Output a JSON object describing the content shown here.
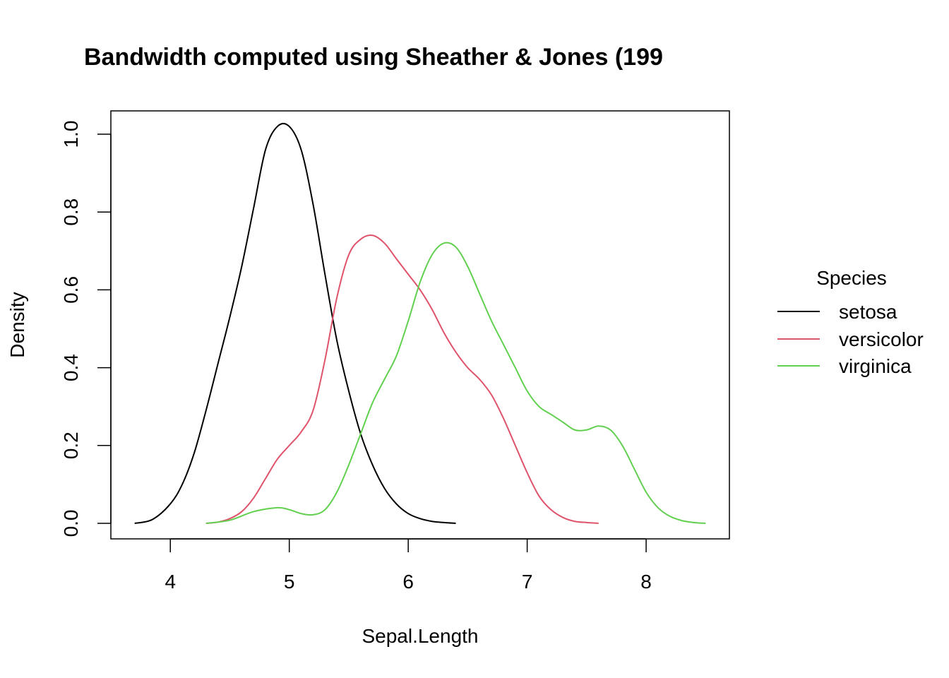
{
  "chart_data": {
    "type": "line",
    "title": "Bandwidth computed using Sheather & Jones (199",
    "xlabel": "Sepal.Length",
    "ylabel": "Density",
    "xlim": [
      3.5,
      8.7
    ],
    "ylim": [
      -0.04,
      1.06
    ],
    "x_ticks": [
      4,
      5,
      6,
      7,
      8
    ],
    "x_tick_labels": [
      "4",
      "5",
      "6",
      "7",
      "8"
    ],
    "y_ticks": [
      0.0,
      0.2,
      0.4,
      0.6,
      0.8,
      1.0
    ],
    "y_tick_labels": [
      "0.0",
      "0.2",
      "0.4",
      "0.6",
      "0.8",
      "1.0"
    ],
    "grid": false,
    "legend": {
      "title": "Species",
      "placement": "right",
      "entries": [
        "setosa",
        "versicolor",
        "virginica"
      ]
    },
    "series": [
      {
        "name": "setosa",
        "color": "#000000",
        "x": [
          3.7,
          3.85,
          4.0,
          4.1,
          4.2,
          4.3,
          4.4,
          4.5,
          4.6,
          4.7,
          4.8,
          4.9,
          5.0,
          5.1,
          5.2,
          5.3,
          5.4,
          5.5,
          5.6,
          5.7,
          5.8,
          5.9,
          6.0,
          6.1,
          6.2,
          6.3,
          6.4
        ],
        "y": [
          0.0,
          0.01,
          0.05,
          0.1,
          0.18,
          0.29,
          0.41,
          0.53,
          0.66,
          0.81,
          0.96,
          1.02,
          1.02,
          0.96,
          0.82,
          0.64,
          0.47,
          0.34,
          0.23,
          0.15,
          0.09,
          0.05,
          0.025,
          0.012,
          0.005,
          0.002,
          0.0
        ]
      },
      {
        "name": "versicolor",
        "color": "#DF536B",
        "x": [
          4.3,
          4.4,
          4.5,
          4.6,
          4.7,
          4.8,
          4.9,
          5.0,
          5.1,
          5.2,
          5.3,
          5.4,
          5.5,
          5.6,
          5.7,
          5.8,
          5.9,
          6.0,
          6.1,
          6.2,
          6.3,
          6.4,
          6.5,
          6.6,
          6.7,
          6.8,
          6.9,
          7.0,
          7.1,
          7.2,
          7.3,
          7.4,
          7.5,
          7.6
        ],
        "y": [
          0.0,
          0.003,
          0.012,
          0.03,
          0.065,
          0.115,
          0.165,
          0.2,
          0.235,
          0.29,
          0.42,
          0.58,
          0.69,
          0.73,
          0.74,
          0.72,
          0.68,
          0.64,
          0.6,
          0.55,
          0.49,
          0.44,
          0.4,
          0.37,
          0.33,
          0.27,
          0.2,
          0.13,
          0.07,
          0.035,
          0.015,
          0.005,
          0.002,
          0.0
        ]
      },
      {
        "name": "virginica",
        "color": "#61D04F",
        "x": [
          4.3,
          4.5,
          4.7,
          4.9,
          5.0,
          5.1,
          5.2,
          5.3,
          5.4,
          5.5,
          5.6,
          5.7,
          5.8,
          5.9,
          6.0,
          6.1,
          6.2,
          6.3,
          6.4,
          6.5,
          6.6,
          6.7,
          6.8,
          6.9,
          7.0,
          7.1,
          7.2,
          7.3,
          7.4,
          7.5,
          7.6,
          7.7,
          7.8,
          7.9,
          8.0,
          8.1,
          8.2,
          8.3,
          8.4,
          8.5
        ],
        "y": [
          0.0,
          0.008,
          0.03,
          0.04,
          0.035,
          0.025,
          0.022,
          0.035,
          0.08,
          0.15,
          0.23,
          0.31,
          0.37,
          0.43,
          0.52,
          0.62,
          0.69,
          0.72,
          0.71,
          0.66,
          0.59,
          0.52,
          0.46,
          0.4,
          0.34,
          0.3,
          0.28,
          0.26,
          0.24,
          0.24,
          0.25,
          0.24,
          0.2,
          0.14,
          0.08,
          0.04,
          0.018,
          0.007,
          0.002,
          0.0
        ]
      }
    ]
  }
}
